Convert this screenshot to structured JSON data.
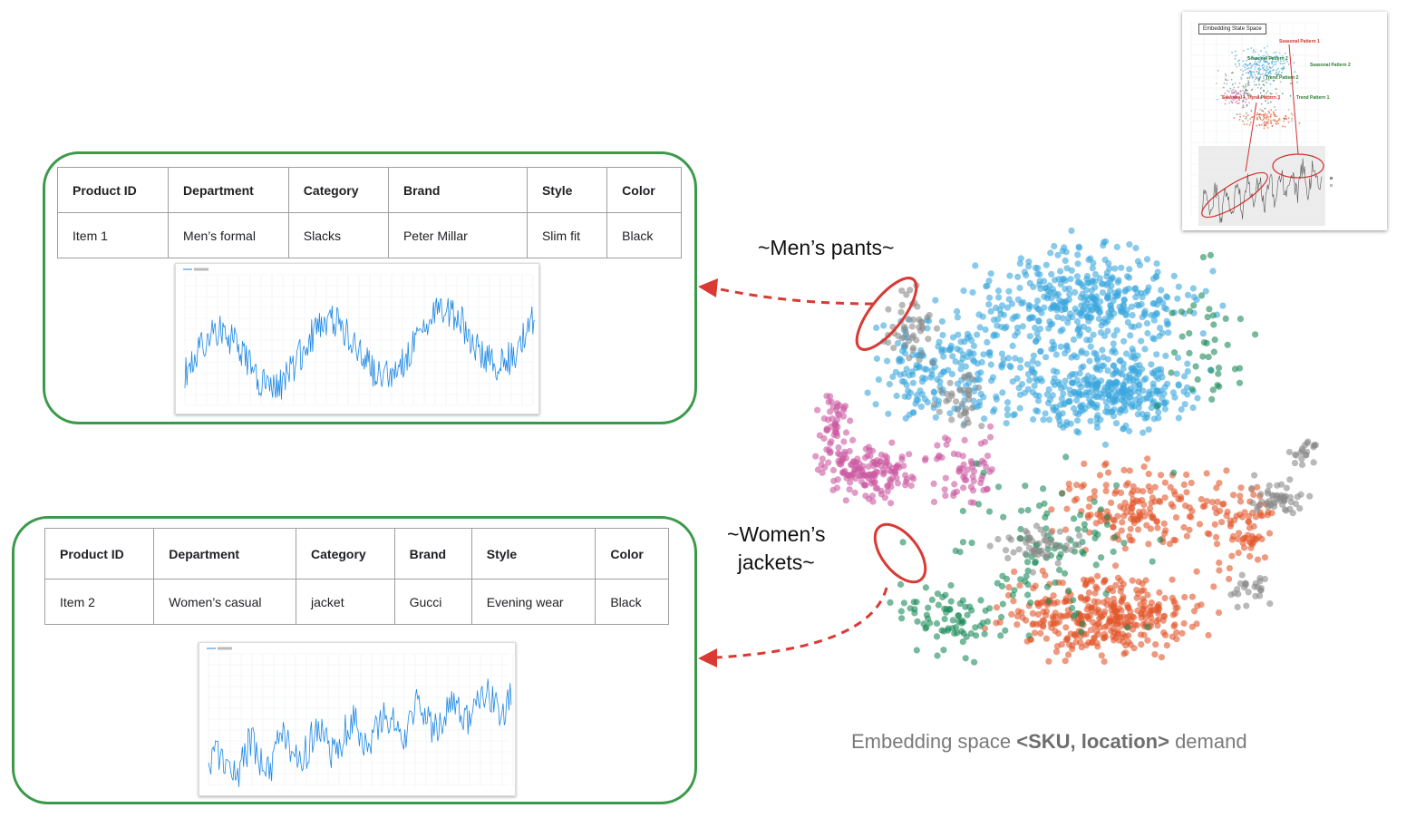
{
  "panels": [
    {
      "table": {
        "headers": [
          "Product ID",
          "Department",
          "Category",
          "Brand",
          "Style",
          "Color"
        ],
        "row": [
          "Item 1",
          "Men’s formal",
          "Slacks",
          "Peter Millar",
          "Slim fit",
          "Black"
        ]
      }
    },
    {
      "table": {
        "headers": [
          "Product ID",
          "Department",
          "Category",
          "Brand",
          "Style",
          "Color"
        ],
        "row": [
          "Item 2",
          "Women’s casual",
          "jacket",
          "Gucci",
          "Evening wear",
          "Black"
        ]
      }
    }
  ],
  "regions": {
    "men_label": "~Men’s pants~",
    "women_label_line1": "~Women’s",
    "women_label_line2": "jackets~"
  },
  "embedding_caption": {
    "prefix": "Embedding space ",
    "bold": "<SKU, location>",
    "suffix": " demand"
  },
  "inset": {
    "title": "Embedding State Space",
    "labels": {
      "seasonal_1": "Seasonal Pattern 1",
      "seasonal_2a": "Seasonal Pattern 2",
      "seasonal_2b": "Seasonal Pattern 2",
      "trend_2": "Trend Pattern 2",
      "trend_1": "Trend Pattern 1",
      "seasonal_trend": "Seasonal + Trend Pattern 3"
    }
  },
  "colors": {
    "panel_border": "#3a9a4a",
    "highlight_red": "#d93a34",
    "blue_cluster": "#3aa6dd",
    "pink_cluster": "#cc5aa2",
    "orange_cluster": "#e2572b",
    "green_cluster": "#1a8a5a",
    "gray_cluster": "#8a8a8a",
    "series_line": "#1e88e5"
  }
}
